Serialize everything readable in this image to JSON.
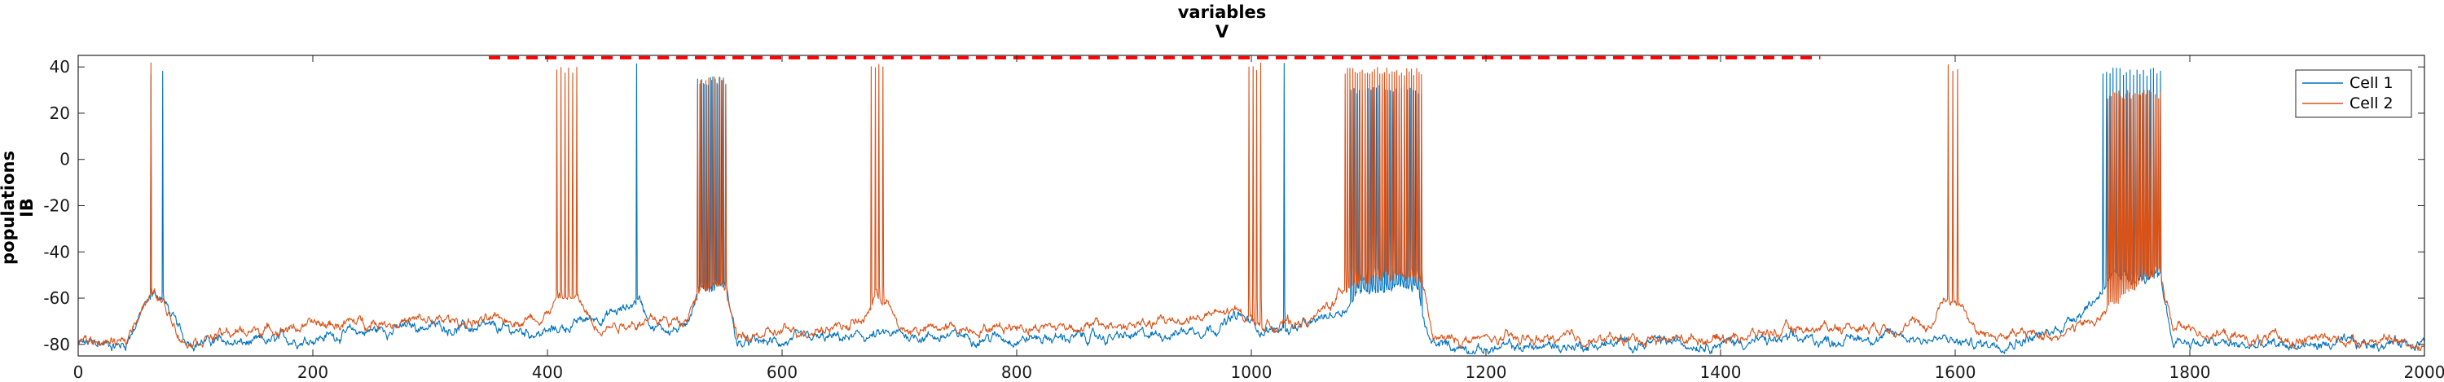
{
  "chart_data": {
    "type": "line",
    "title": "variables",
    "subtitle": "V",
    "ylabel_lines": [
      "populations",
      "IB"
    ],
    "xlim": [
      0,
      2000
    ],
    "ylim": [
      -85,
      45
    ],
    "x_ticks": [
      0,
      200,
      400,
      600,
      800,
      1000,
      1200,
      1400,
      1600,
      1800,
      2000
    ],
    "y_ticks": [
      -80,
      -60,
      -40,
      -20,
      0,
      20,
      40
    ],
    "grid": false,
    "legend_position": "top-right",
    "colors": {
      "cell1": "#0072BD",
      "cell2": "#D95319",
      "dashed": "#FF0000"
    },
    "series": [
      {
        "name": "Cell 1",
        "color": "#0072BD",
        "baseline": [
          [
            0,
            -80
          ],
          [
            40,
            -80
          ],
          [
            55,
            -65
          ],
          [
            65,
            -58
          ],
          [
            72,
            -60
          ],
          [
            90,
            -78
          ],
          [
            150,
            -80
          ],
          [
            250,
            -74
          ],
          [
            300,
            -72
          ],
          [
            360,
            -74
          ],
          [
            400,
            -75
          ],
          [
            430,
            -70
          ],
          [
            465,
            -65
          ],
          [
            478,
            -60
          ],
          [
            490,
            -72
          ],
          [
            515,
            -74
          ],
          [
            530,
            -55
          ],
          [
            552,
            -55
          ],
          [
            562,
            -80
          ],
          [
            600,
            -79
          ],
          [
            700,
            -76
          ],
          [
            800,
            -77
          ],
          [
            900,
            -77
          ],
          [
            970,
            -72
          ],
          [
            990,
            -68
          ],
          [
            1010,
            -74
          ],
          [
            1050,
            -72
          ],
          [
            1080,
            -64
          ],
          [
            1095,
            -55
          ],
          [
            1140,
            -55
          ],
          [
            1152,
            -80
          ],
          [
            1200,
            -82
          ],
          [
            1300,
            -80
          ],
          [
            1400,
            -79
          ],
          [
            1500,
            -78
          ],
          [
            1550,
            -76
          ],
          [
            1620,
            -80
          ],
          [
            1680,
            -76
          ],
          [
            1720,
            -60
          ],
          [
            1730,
            -52
          ],
          [
            1775,
            -52
          ],
          [
            1785,
            -78
          ],
          [
            1850,
            -81
          ],
          [
            1950,
            -80
          ],
          [
            2000,
            -78
          ]
        ],
        "bursts": [
          {
            "start": 62,
            "end": 72,
            "count": 2,
            "peak": 40,
            "floor": -60
          },
          {
            "start": 476,
            "end": 478,
            "count": 1,
            "peak": 44,
            "floor": -62
          },
          {
            "start": 528,
            "end": 552,
            "count": 14,
            "peak": 36,
            "floor": -55
          },
          {
            "start": 1028,
            "end": 1030,
            "count": 1,
            "peak": 44,
            "floor": -65
          },
          {
            "start": 1085,
            "end": 1145,
            "count": 26,
            "peak": 32,
            "floor": -55
          },
          {
            "start": 1726,
            "end": 1775,
            "count": 18,
            "peak": 40,
            "floor": -52
          }
        ]
      },
      {
        "name": "Cell 2",
        "color": "#D95319",
        "baseline": [
          [
            0,
            -78
          ],
          [
            40,
            -80
          ],
          [
            55,
            -62
          ],
          [
            65,
            -58
          ],
          [
            72,
            -62
          ],
          [
            90,
            -78
          ],
          [
            150,
            -74
          ],
          [
            250,
            -70
          ],
          [
            300,
            -70
          ],
          [
            360,
            -70
          ],
          [
            395,
            -68
          ],
          [
            410,
            -60
          ],
          [
            425,
            -60
          ],
          [
            440,
            -72
          ],
          [
            480,
            -70
          ],
          [
            515,
            -70
          ],
          [
            530,
            -55
          ],
          [
            552,
            -55
          ],
          [
            562,
            -78
          ],
          [
            600,
            -75
          ],
          [
            670,
            -70
          ],
          [
            680,
            -58
          ],
          [
            690,
            -62
          ],
          [
            700,
            -74
          ],
          [
            800,
            -72
          ],
          [
            900,
            -72
          ],
          [
            990,
            -66
          ],
          [
            1010,
            -72
          ],
          [
            1050,
            -70
          ],
          [
            1070,
            -62
          ],
          [
            1085,
            -52
          ],
          [
            1145,
            -52
          ],
          [
            1155,
            -78
          ],
          [
            1200,
            -78
          ],
          [
            1300,
            -78
          ],
          [
            1400,
            -77
          ],
          [
            1500,
            -72
          ],
          [
            1580,
            -72
          ],
          [
            1590,
            -60
          ],
          [
            1605,
            -62
          ],
          [
            1620,
            -76
          ],
          [
            1680,
            -76
          ],
          [
            1720,
            -70
          ],
          [
            1740,
            -60
          ],
          [
            1760,
            -50
          ],
          [
            1775,
            -50
          ],
          [
            1785,
            -72
          ],
          [
            1850,
            -78
          ],
          [
            1950,
            -78
          ],
          [
            2000,
            -80
          ]
        ],
        "bursts": [
          {
            "start": 62,
            "end": 67,
            "count": 1,
            "peak": 44,
            "floor": -58
          },
          {
            "start": 408,
            "end": 425,
            "count": 6,
            "peak": 40,
            "floor": -60
          },
          {
            "start": 528,
            "end": 552,
            "count": 11,
            "peak": 36,
            "floor": -55
          },
          {
            "start": 676,
            "end": 686,
            "count": 4,
            "peak": 42,
            "floor": -58
          },
          {
            "start": 998,
            "end": 1008,
            "count": 4,
            "peak": 42,
            "floor": -62
          },
          {
            "start": 1080,
            "end": 1145,
            "count": 32,
            "peak": 40,
            "floor": -50
          },
          {
            "start": 1594,
            "end": 1602,
            "count": 3,
            "peak": 42,
            "floor": -60
          },
          {
            "start": 1730,
            "end": 1775,
            "count": 30,
            "peak": 30,
            "floor": -50
          }
        ]
      }
    ],
    "reference_line": {
      "style": "dashed",
      "color": "#FF0000",
      "x": [
        350,
        1485
      ],
      "y": 44
    }
  }
}
